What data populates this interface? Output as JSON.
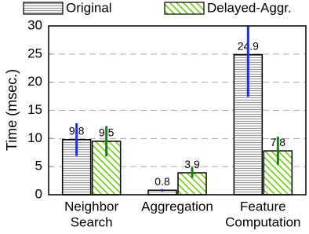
{
  "chart_data": {
    "type": "bar",
    "y_label": "Time (msec.)",
    "categories": [
      [
        "Neighbor",
        "Search"
      ],
      [
        "Aggregation"
      ],
      [
        "Feature",
        "Computation"
      ]
    ],
    "series": [
      {
        "name": "Original",
        "color": "#999999",
        "hatch": "horizontal",
        "error_color": "#1f2ee0",
        "values": [
          9.8,
          0.8,
          24.9
        ],
        "errors": [
          2.9,
          0.2,
          7.5
        ]
      },
      {
        "name": "Delayed-Aggr.",
        "color": "#66cc00",
        "hatch": "diagonal",
        "error_color": "#1f7a1f",
        "values": [
          9.5,
          3.9,
          7.8
        ],
        "errors": [
          2.7,
          0.9,
          2.5
        ]
      }
    ],
    "ylim": [
      0,
      30
    ],
    "yticks": [
      0,
      5,
      10,
      15,
      20,
      25,
      30
    ],
    "grid": true
  }
}
